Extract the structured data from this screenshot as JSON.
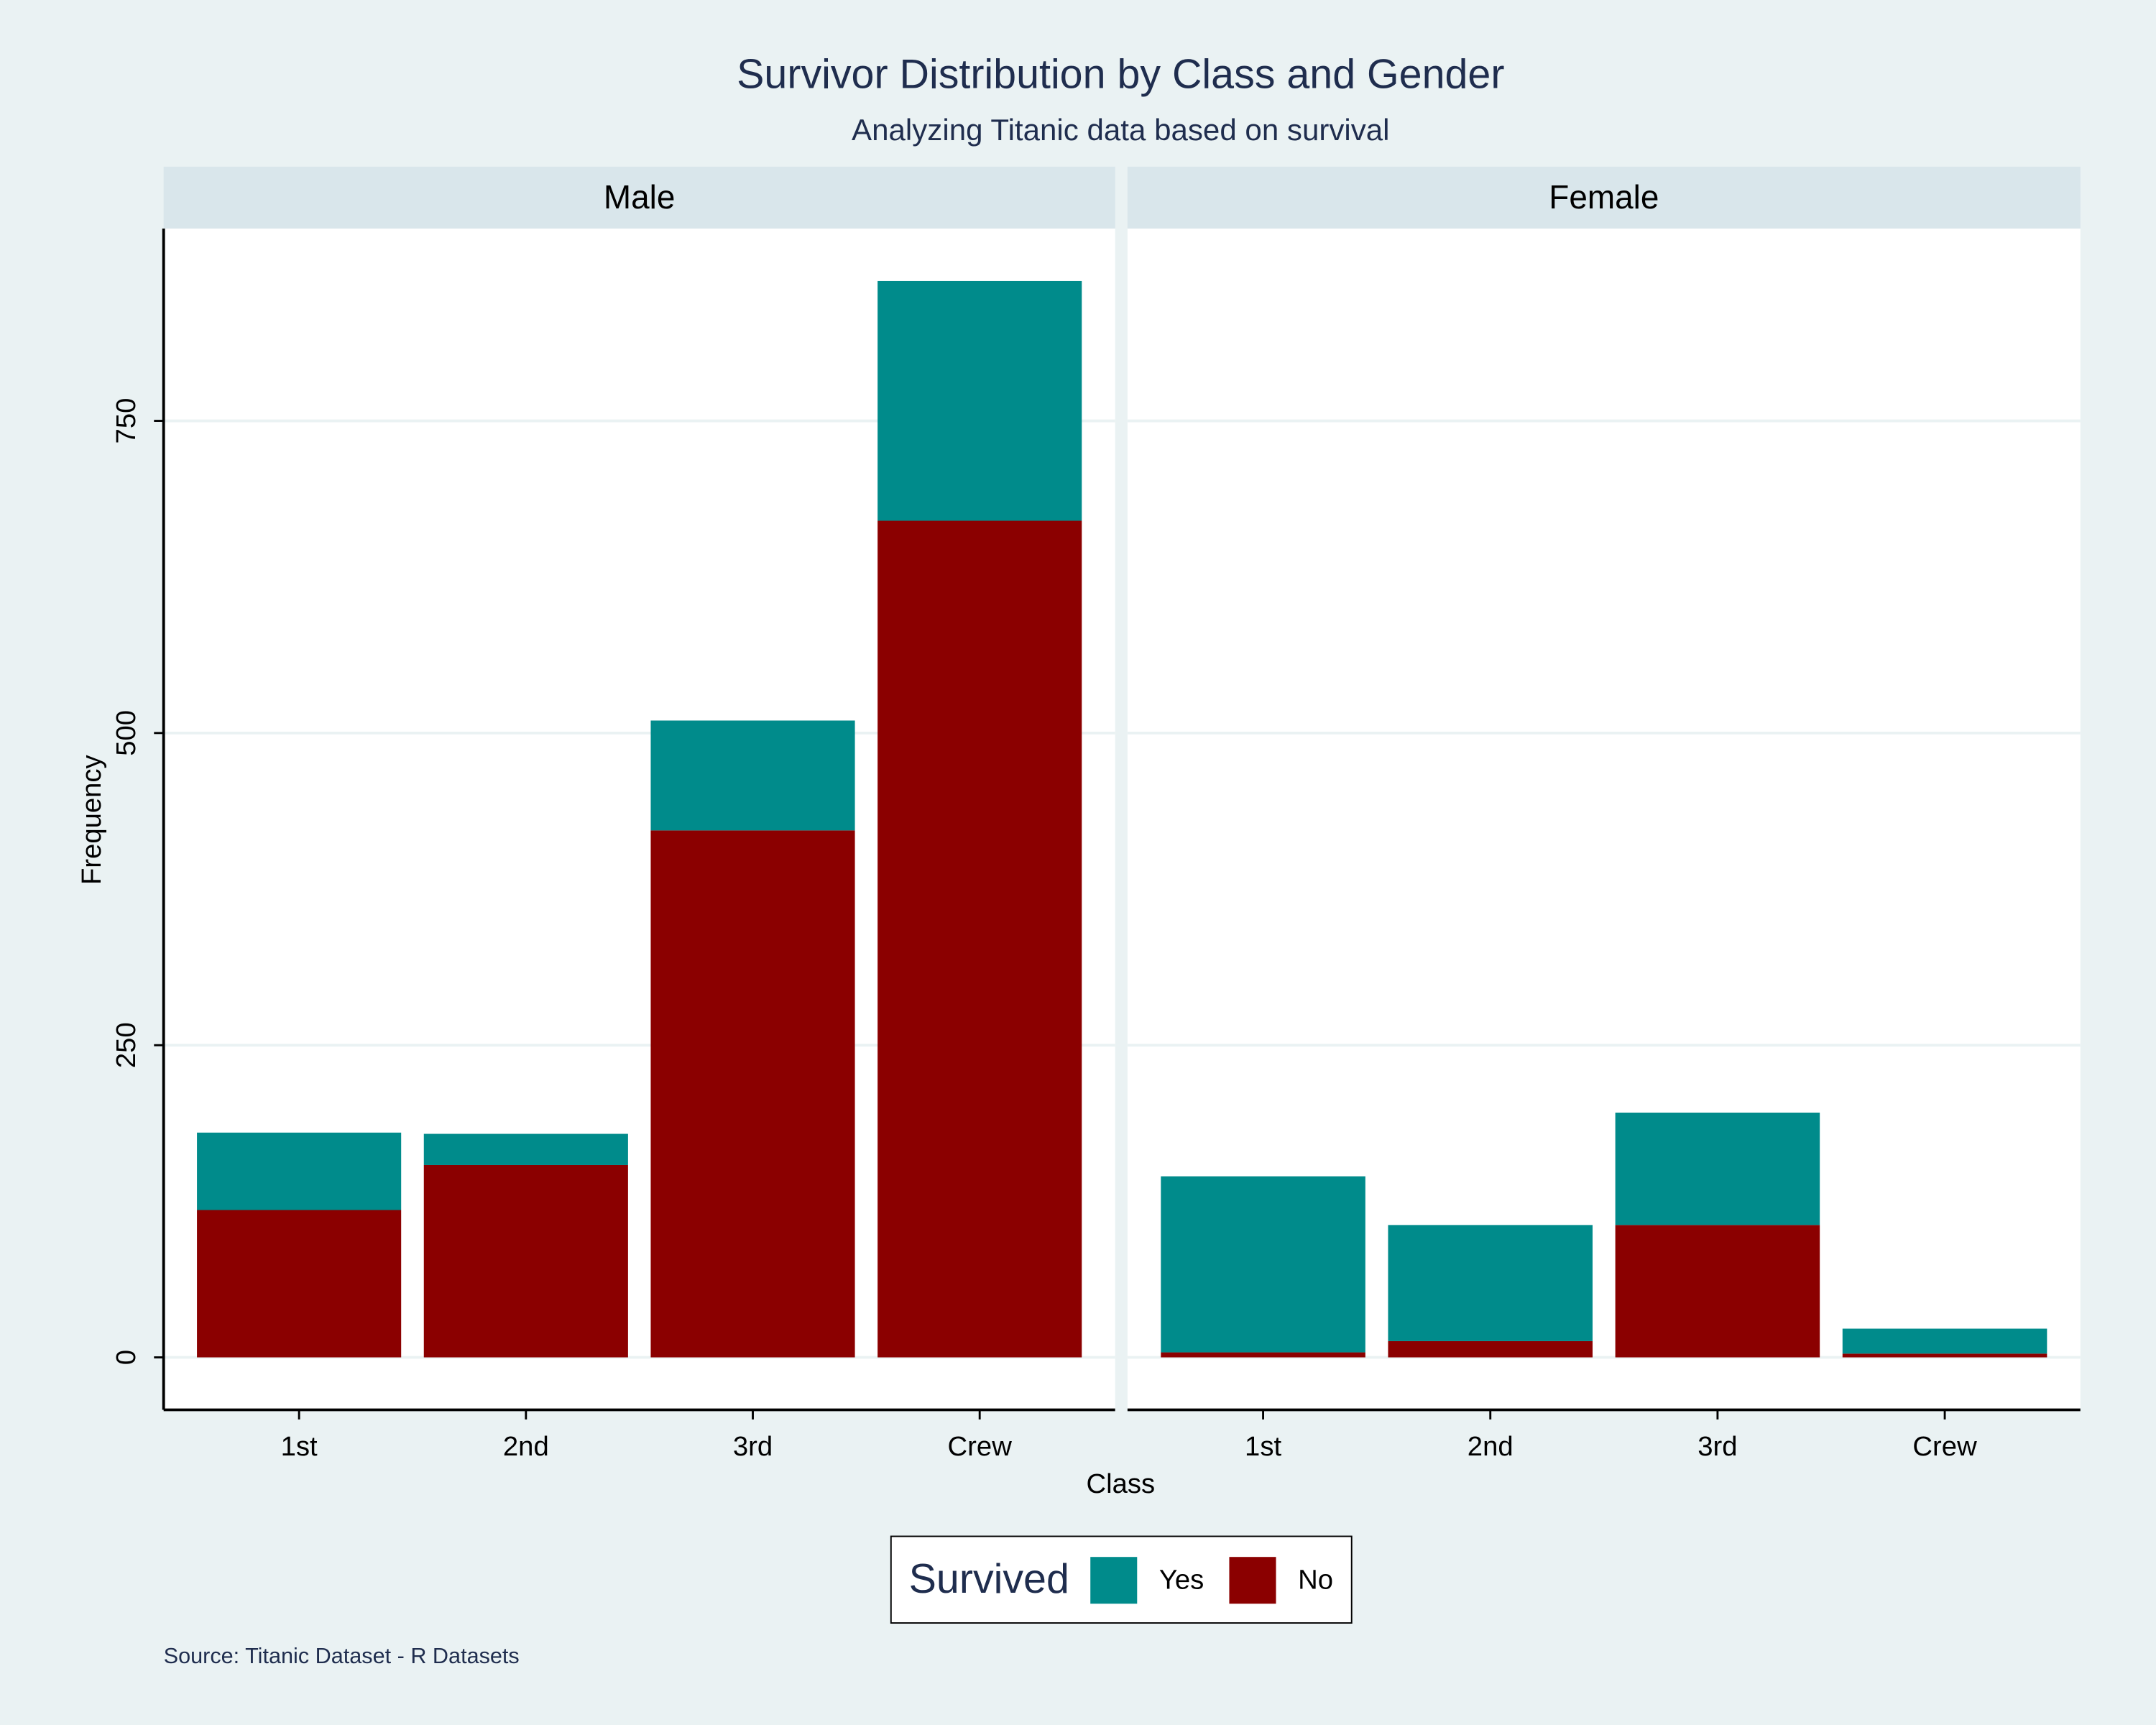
{
  "chart_data": {
    "type": "stacked-bar",
    "title": "Survivor Distribution by Class and Gender",
    "subtitle": "Analyzing Titanic data based on survival",
    "x_label": "Class",
    "y_label": "Frequency",
    "legend_title": "Survived",
    "source": "Source: Titanic Dataset - R Datasets",
    "categories": [
      "1st",
      "2nd",
      "3rd",
      "Crew"
    ],
    "ylim": [
      -42,
      904
    ],
    "yticks": [
      0,
      250,
      500,
      750
    ],
    "grid": true,
    "legend": "bottom",
    "facets": [
      {
        "name": "Male",
        "series": [
          {
            "name": "Yes",
            "color": "#008b8b",
            "values": [
              62,
              25,
              88,
              192
            ]
          },
          {
            "name": "No",
            "color": "#8b0000",
            "values": [
              118,
              154,
              422,
              670
            ]
          }
        ]
      },
      {
        "name": "Female",
        "series": [
          {
            "name": "Yes",
            "color": "#008b8b",
            "values": [
              141,
              93,
              90,
              20
            ]
          },
          {
            "name": "No",
            "color": "#8b0000",
            "values": [
              4,
              13,
              106,
              3
            ]
          }
        ]
      }
    ]
  }
}
